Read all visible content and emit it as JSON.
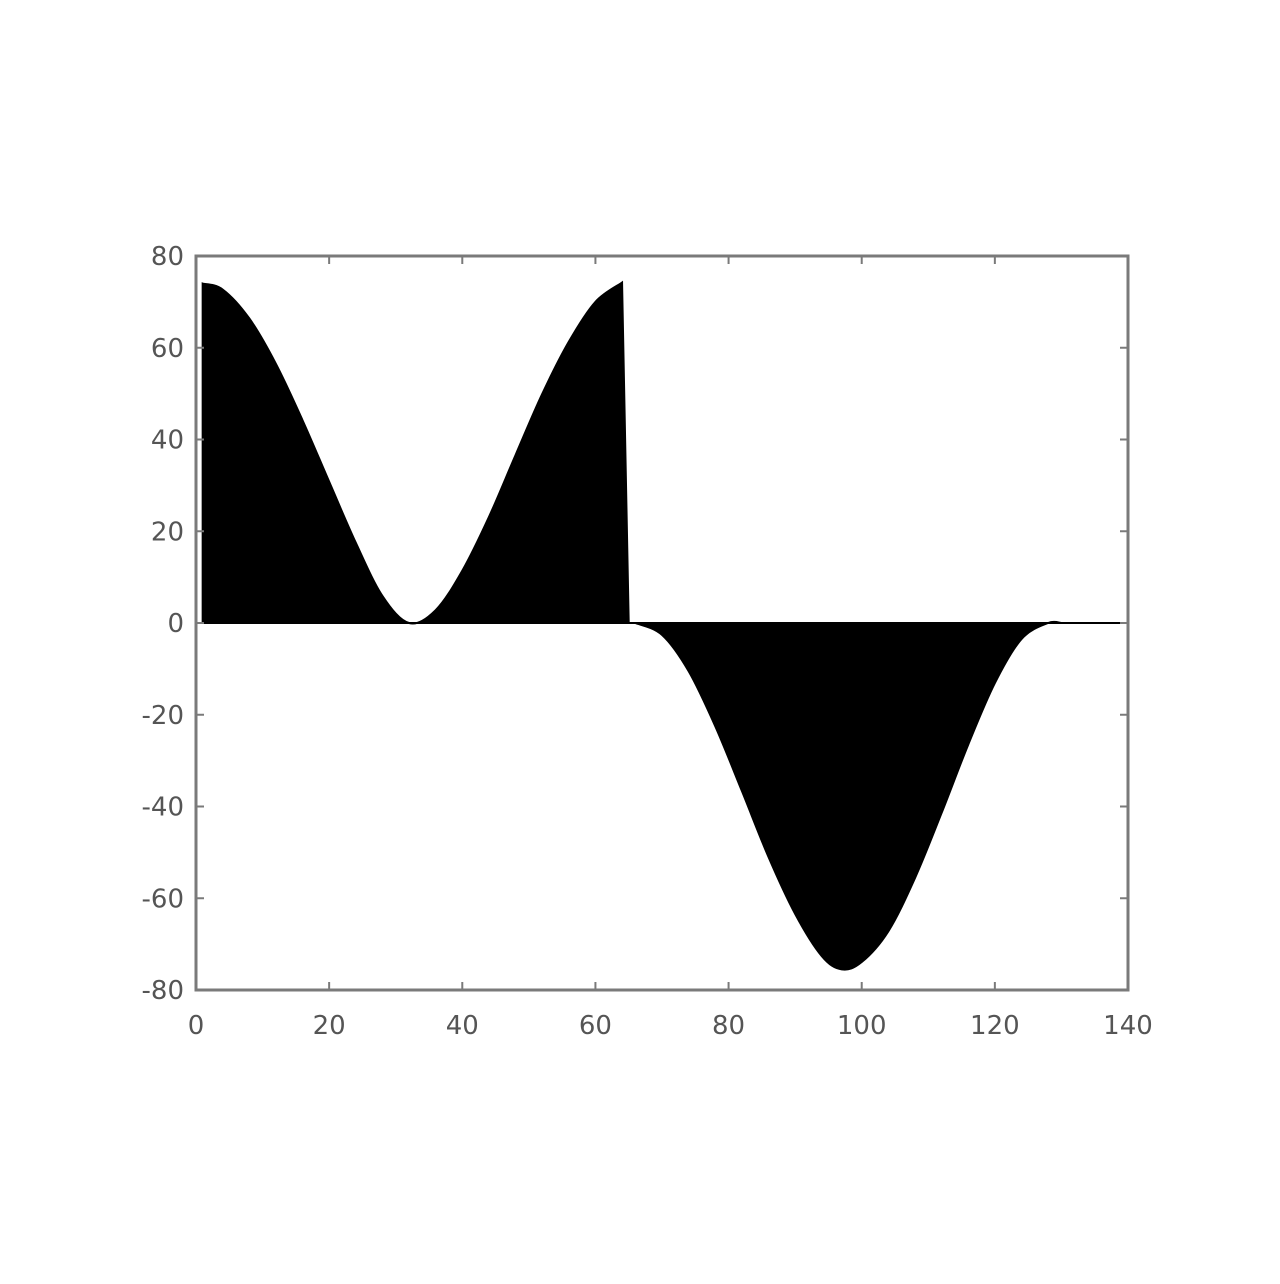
{
  "chart_data": {
    "type": "area",
    "title": "",
    "xlabel": "",
    "ylabel": "",
    "xlim": [
      0,
      140
    ],
    "ylim": [
      -80,
      80
    ],
    "xticks": [
      0,
      20,
      40,
      60,
      80,
      100,
      120,
      140
    ],
    "yticks": [
      -80,
      -60,
      -40,
      -20,
      0,
      20,
      40,
      60,
      80
    ],
    "xtick_labels": [
      "0",
      "20",
      "40",
      "60",
      "80",
      "100",
      "120",
      "140"
    ],
    "ytick_labels": [
      "-80",
      "-60",
      "-40",
      "-20",
      "0",
      "20",
      "40",
      "60",
      "80"
    ],
    "grid": false,
    "legend": "none",
    "fill_color": "#000000",
    "baseline": 0,
    "series": [
      {
        "x": [
          1,
          4,
          8,
          12,
          16,
          20,
          24,
          28,
          32,
          36,
          40,
          44,
          48,
          52,
          56,
          60,
          64,
          65
        ],
        "values": [
          74,
          72.7,
          66.4,
          56.5,
          44.2,
          30.8,
          17.5,
          5.9,
          0,
          2.8,
          11.4,
          23.1,
          36.6,
          49.9,
          61.3,
          70.0,
          74.2,
          0
        ]
      },
      {
        "x": [
          66,
          70,
          74,
          78,
          82,
          86,
          90,
          94,
          97,
          100,
          104,
          108,
          112,
          116,
          120,
          124,
          128,
          130
        ],
        "values": [
          0,
          -2.6,
          -10.5,
          -22.5,
          -36.6,
          -51.0,
          -63.4,
          -72.6,
          -75.5,
          -73.9,
          -67.2,
          -55.6,
          -41.4,
          -26.5,
          -13.1,
          -3.5,
          0,
          0
        ]
      }
    ]
  }
}
